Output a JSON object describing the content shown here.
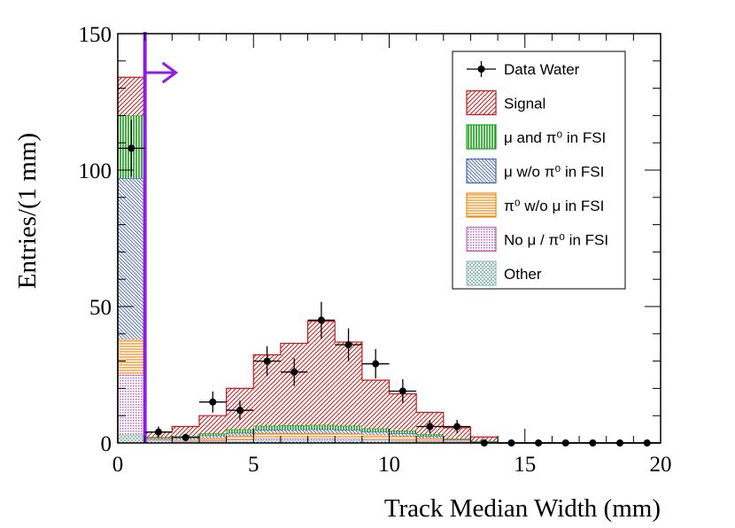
{
  "chart_data": {
    "type": "bar",
    "stacked": true,
    "title": "",
    "xlabel": "Track Median Width (mm)",
    "ylabel": "Entries/(1 mm)",
    "xlim": [
      0,
      20
    ],
    "ylim": [
      0,
      150
    ],
    "x_ticks": [
      "0",
      "5",
      "10",
      "15",
      "20"
    ],
    "y_ticks": [
      "0",
      "50",
      "100",
      "150"
    ],
    "bin_edges": [
      0,
      1,
      2,
      3,
      4,
      5,
      6,
      7,
      8,
      9,
      10,
      11,
      12,
      13,
      14,
      15,
      16,
      17,
      18,
      19,
      20
    ],
    "series": [
      {
        "name": "Other",
        "color": "#8fc4b4",
        "pattern": "checker",
        "values": [
          3,
          1,
          0.5,
          0.5,
          0.7,
          1,
          1,
          1,
          1,
          0.8,
          0.6,
          0.5,
          0.3,
          0.1,
          0,
          0,
          0,
          0,
          0,
          0
        ]
      },
      {
        "name": "No μ / π⁰ in FSI",
        "color": "#c060c0",
        "pattern": "dots",
        "values": [
          22,
          0.3,
          0.3,
          0.4,
          0.5,
          0.6,
          0.6,
          0.6,
          0.5,
          0.5,
          0.4,
          0.3,
          0.2,
          0.1,
          0,
          0,
          0,
          0,
          0,
          0
        ]
      },
      {
        "name": "π⁰ w/o μ in FSI",
        "color": "#f08a10",
        "pattern": "horizontal",
        "values": [
          13,
          0.3,
          0.5,
          1,
          1.5,
          2,
          2,
          2,
          2,
          1.7,
          1.5,
          1,
          0.5,
          0.2,
          0,
          0,
          0,
          0,
          0,
          0
        ]
      },
      {
        "name": "μ w/o π⁰ in FSI",
        "color": "#3f64b4",
        "pattern": "diagonal-back",
        "values": [
          59,
          0.4,
          0.7,
          0.8,
          1,
          1.2,
          1.3,
          1.4,
          1.3,
          1.1,
          1,
          0.7,
          0.3,
          0.2,
          0,
          0,
          0,
          0,
          0,
          0
        ]
      },
      {
        "name": "μ and π⁰ in FSI",
        "color": "#16a016",
        "pattern": "vertical",
        "values": [
          23,
          0.2,
          0.5,
          0.8,
          1.3,
          1.5,
          1.6,
          1.6,
          1.5,
          1.2,
          1,
          0.7,
          0.3,
          0.1,
          0,
          0,
          0,
          0,
          0,
          0
        ]
      },
      {
        "name": "Signal",
        "color": "#c81818",
        "pattern": "diagonal",
        "values": [
          14,
          1.8,
          3.5,
          6.5,
          15,
          26,
          30,
          38,
          30.7,
          17.7,
          13.5,
          8,
          4,
          1.5,
          0,
          0,
          0,
          0,
          0,
          0
        ]
      }
    ],
    "data_water": {
      "name": "Data Water",
      "x": [
        0.5,
        1.5,
        2.5,
        3.5,
        4.5,
        5.5,
        6.5,
        7.5,
        8.5,
        9.5,
        10.5,
        11.5,
        12.5,
        13.5,
        14.5,
        15.5,
        16.5,
        17.5,
        18.5,
        19.5
      ],
      "y": [
        108,
        4,
        2,
        15,
        12,
        30,
        26,
        45,
        36,
        29,
        19,
        6,
        6,
        0,
        0,
        0,
        0,
        0,
        0,
        0
      ]
    },
    "cut": {
      "x": 1.0,
      "direction": "right"
    },
    "legend_position": "top-right",
    "colors": {
      "cut_line": "#8a1ee6"
    }
  }
}
